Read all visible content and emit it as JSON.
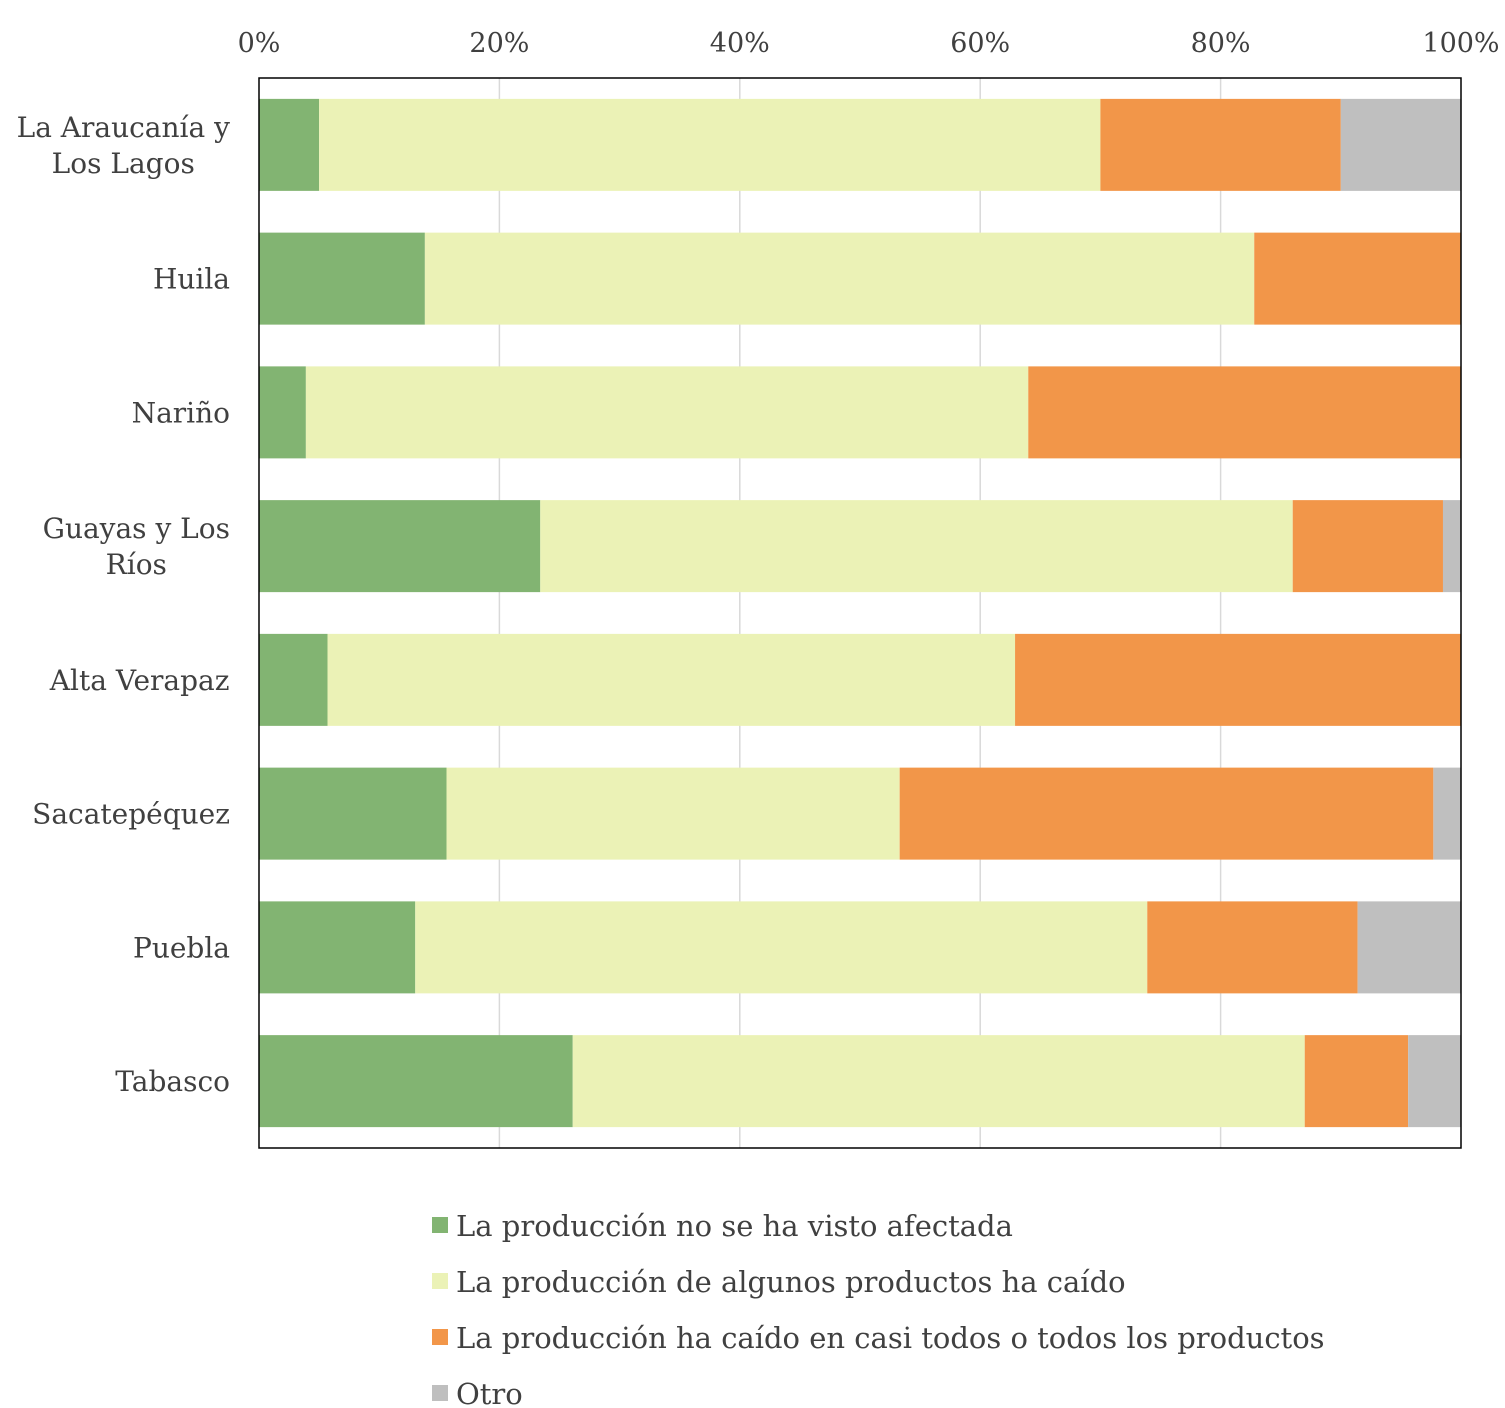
{
  "chart_data": {
    "type": "bar",
    "orientation": "horizontal",
    "stacked": "percent",
    "categories": [
      "La Araucanía y Los Lagos",
      "Huila",
      "Nariño",
      "Guayas y Los Ríos",
      "Alta Verapaz",
      "Sacatepéquez",
      "Puebla",
      "Tabasco"
    ],
    "category_lines": [
      [
        "La Araucanía y",
        "Los Lagos"
      ],
      [
        "Huila"
      ],
      [
        "Nariño"
      ],
      [
        "Guayas y Los",
        "Ríos"
      ],
      [
        "Alta Verapaz"
      ],
      [
        "Sacatepéquez"
      ],
      [
        "Puebla"
      ],
      [
        "Tabasco"
      ]
    ],
    "series": [
      {
        "name": "La producción no se ha visto afectada",
        "color": "#82b472",
        "values": [
          5.0,
          13.8,
          3.9,
          23.4,
          5.7,
          15.6,
          13.0,
          26.1
        ]
      },
      {
        "name": "La producción de algunos productos ha caído",
        "color": "#ebf2b6",
        "values": [
          65.0,
          69.0,
          60.1,
          62.6,
          57.2,
          37.7,
          60.9,
          60.9
        ]
      },
      {
        "name": "La producción ha caído en casi todos o todos los productos",
        "color": "#f29649",
        "values": [
          20.0,
          17.2,
          36.0,
          12.5,
          37.1,
          44.4,
          17.5,
          8.6
        ]
      },
      {
        "name": "Otro",
        "color": "#bfbfbf",
        "values": [
          10.0,
          0.0,
          0.0,
          1.5,
          0.0,
          2.3,
          8.6,
          4.4
        ]
      }
    ],
    "xlim": [
      0,
      100
    ],
    "xticks": [
      "0%",
      "20%",
      "40%",
      "60%",
      "80%",
      "100%"
    ],
    "xtick_values": [
      0,
      20,
      40,
      60,
      80,
      100
    ],
    "x_axis_position": "top",
    "grid": true,
    "legend_position": "bottom",
    "title": "",
    "xlabel": "",
    "ylabel": ""
  }
}
